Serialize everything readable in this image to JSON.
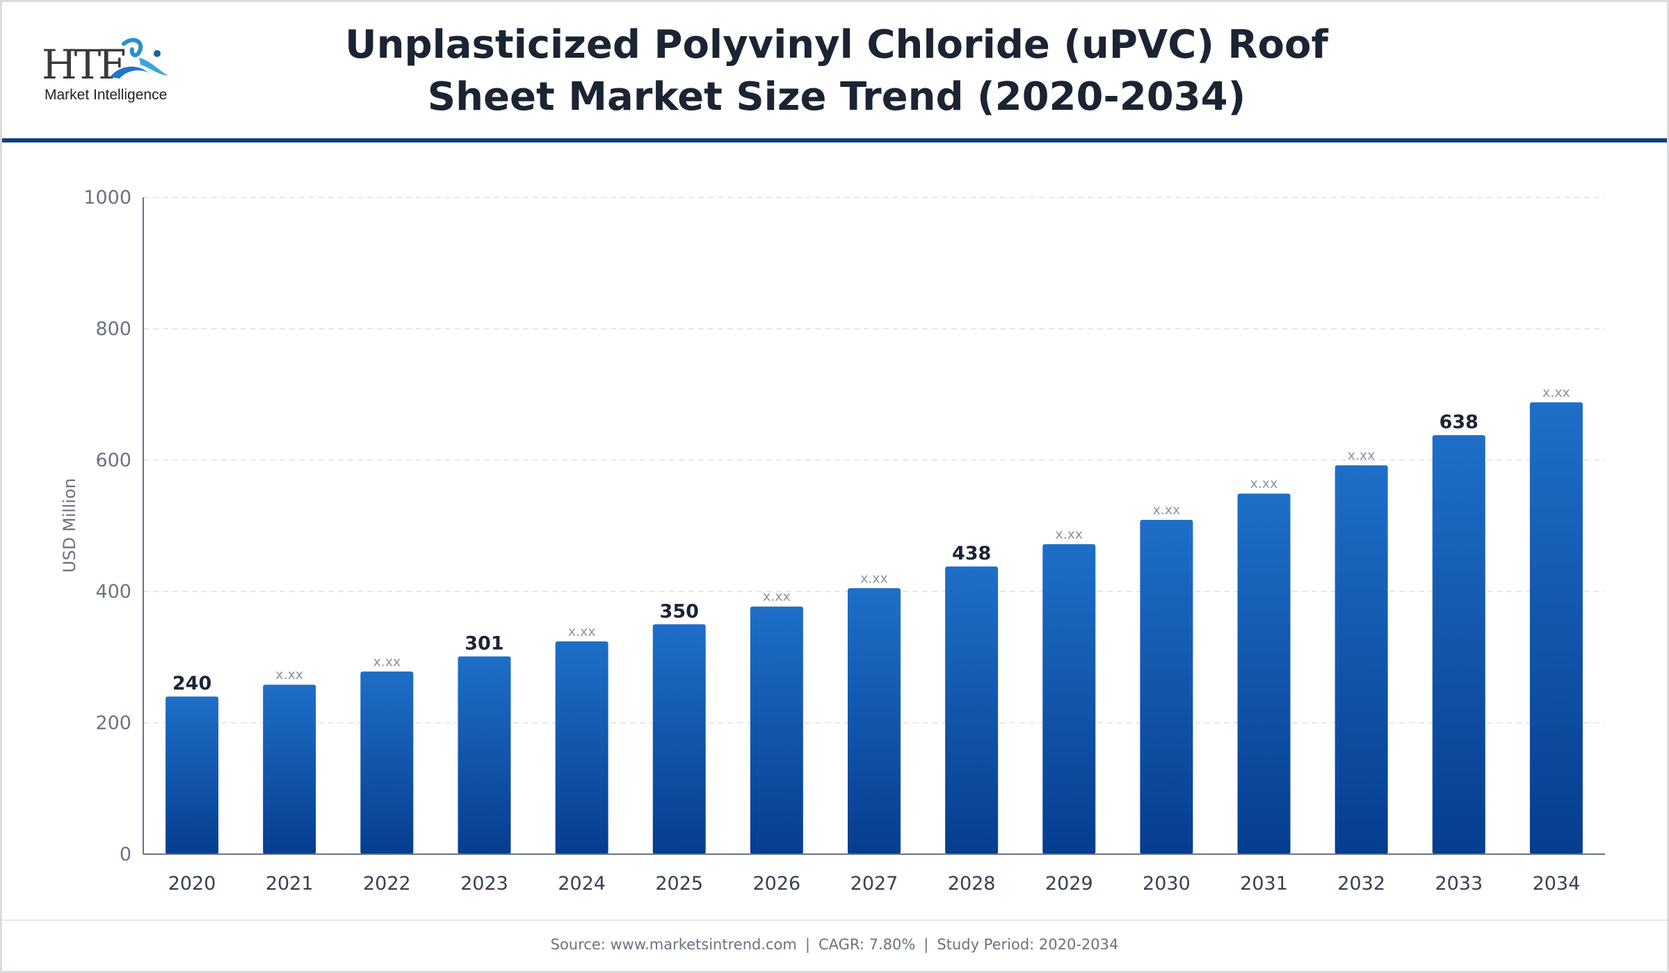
{
  "header": {
    "title_line1": "Unplasticized Polyvinyl Chloride (uPVC) Roof",
    "title_line2": "Sheet Market Size Trend (2020-2034)",
    "logo": {
      "letters": "HTF",
      "tagline": "Market Intelligence",
      "mark_icon": "htf-swirl-icon"
    }
  },
  "chart_data": {
    "type": "bar",
    "categories": [
      "2020",
      "2021",
      "2022",
      "2023",
      "2024",
      "2025",
      "2026",
      "2027",
      "2028",
      "2029",
      "2030",
      "2031",
      "2032",
      "2033",
      "2034"
    ],
    "values": [
      240,
      258,
      278,
      301,
      324,
      350,
      377,
      405,
      438,
      472,
      509,
      549,
      592,
      638,
      688
    ],
    "labels": [
      "240",
      "x.xx",
      "x.xx",
      "301",
      "x.xx",
      "350",
      "x.xx",
      "x.xx",
      "438",
      "x.xx",
      "x.xx",
      "x.xx",
      "x.xx",
      "638",
      "x.xx"
    ],
    "highlighted": [
      true,
      false,
      false,
      true,
      false,
      true,
      false,
      false,
      true,
      false,
      false,
      false,
      false,
      true,
      false
    ],
    "ylabel": "USD Million",
    "xlabel": "",
    "ylim": [
      0,
      1000
    ],
    "yticks": [
      0,
      200,
      400,
      600,
      800,
      1000
    ],
    "grid": true,
    "colors": {
      "bar_top": "#1e6fc8",
      "bar_bottom": "#063d8f",
      "grid": "#e5e7eb",
      "axis": "#6b7280"
    }
  },
  "footer": {
    "source": "Source: www.marketsintrend.com",
    "cagr": "CAGR: 7.80%",
    "period": "Study Period: 2020-2034",
    "separator": "|"
  }
}
